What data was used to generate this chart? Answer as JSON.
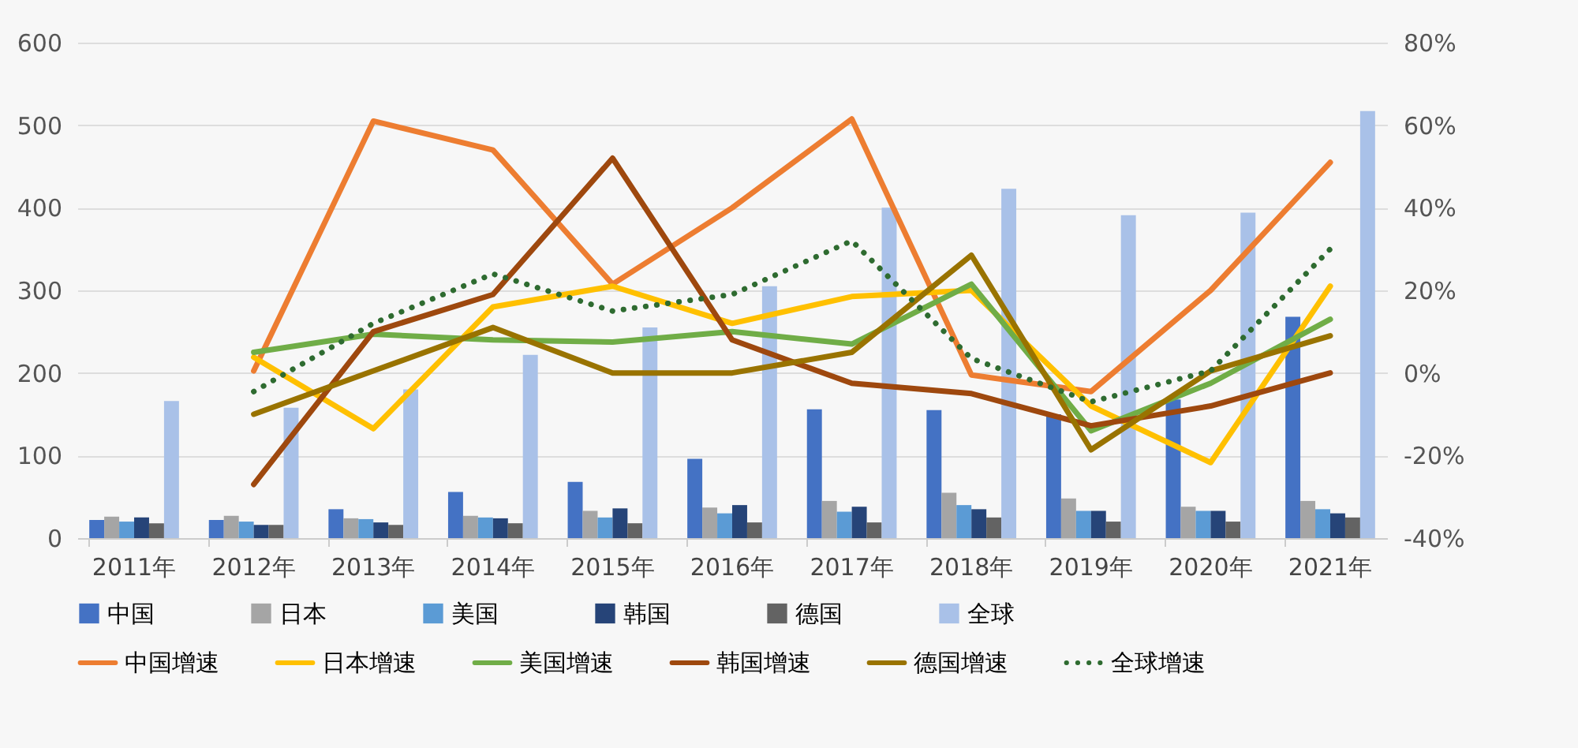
{
  "chart_data": {
    "type": "bar",
    "categories": [
      "2011年",
      "2012年",
      "2013年",
      "2014年",
      "2015年",
      "2016年",
      "2017年",
      "2018年",
      "2019年",
      "2020年",
      "2021年"
    ],
    "series": [
      {
        "name": "中国",
        "color": "#4472c4",
        "values": [
          22,
          22,
          35,
          56,
          68,
          96,
          156,
          155,
          150,
          168,
          268
        ]
      },
      {
        "name": "日本",
        "color": "#a5a5a5",
        "values": [
          26,
          27,
          24,
          27,
          33,
          37,
          45,
          55,
          48,
          38,
          45
        ]
      },
      {
        "name": "美国",
        "color": "#5b9bd5",
        "values": [
          20,
          20,
          23,
          25,
          25,
          30,
          32,
          40,
          33,
          33,
          35
        ]
      },
      {
        "name": "韩国",
        "color": "#264478",
        "values": [
          25,
          16,
          19,
          24,
          36,
          40,
          38,
          35,
          33,
          33,
          30
        ]
      },
      {
        "name": "德国",
        "color": "#636363",
        "values": [
          18,
          16,
          16,
          18,
          18,
          19,
          19,
          25,
          20,
          20,
          25
        ]
      },
      {
        "name": "全球",
        "color": "#a9c1e8",
        "values": [
          166,
          158,
          180,
          222,
          255,
          305,
          400,
          423,
          391,
          394,
          517
        ]
      },
      {
        "name": "中国增速",
        "type": "line",
        "axis": "y2",
        "color": "#ed7d31",
        "line_style": "solid",
        "values": [
          null,
          0.5,
          61,
          54,
          21.5,
          40,
          61.5,
          -0.5,
          -4.5,
          20,
          51
        ]
      },
      {
        "name": "日本增速",
        "type": "line",
        "axis": "y2",
        "color": "#ffc000",
        "line_style": "solid",
        "values": [
          null,
          3.8,
          -13.5,
          16,
          21,
          12,
          18.5,
          20,
          -8,
          -21.7,
          21
        ]
      },
      {
        "name": "美国增速",
        "type": "line",
        "axis": "y2",
        "color": "#70ad47",
        "line_style": "solid",
        "values": [
          null,
          5,
          9.4,
          8,
          7.5,
          10,
          7,
          21.5,
          -14,
          -2.5,
          13
        ]
      },
      {
        "name": "韩国增速",
        "type": "line",
        "axis": "y2",
        "color": "#9e480e",
        "line_style": "solid",
        "values": [
          null,
          -27,
          10,
          19,
          52,
          8,
          -2.5,
          -5,
          -12.8,
          -8,
          0
        ]
      },
      {
        "name": "德国增速",
        "type": "line",
        "axis": "y2",
        "color": "#997300",
        "line_style": "solid",
        "values": [
          null,
          -10,
          0.5,
          11,
          0,
          0,
          5,
          28.5,
          -18.6,
          0.5,
          9
        ]
      },
      {
        "name": "全球增速",
        "type": "line",
        "axis": "y2",
        "color": "#2e6b30",
        "line_style": "dotted",
        "values": [
          null,
          -4.5,
          12,
          24,
          15,
          19,
          32,
          3.5,
          -7,
          0.5,
          30
        ]
      }
    ],
    "ylim": [
      0,
      600
    ],
    "yticks": [
      0,
      100,
      200,
      300,
      400,
      500,
      600
    ],
    "y2lim": [
      -40,
      80
    ],
    "y2ticks": [
      {
        "value": -40,
        "label": "-40%"
      },
      {
        "value": -20,
        "label": "-20%"
      },
      {
        "value": 0,
        "label": "0%"
      },
      {
        "value": 20,
        "label": "20%"
      },
      {
        "value": 40,
        "label": "40%"
      },
      {
        "value": 60,
        "label": "60%"
      },
      {
        "value": 80,
        "label": "80%"
      }
    ],
    "grid": "y",
    "legend": "bottom"
  }
}
